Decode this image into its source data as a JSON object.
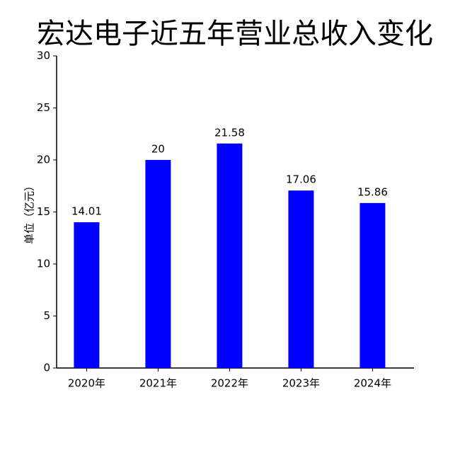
{
  "chart_data": {
    "type": "bar",
    "title": "宏达电子近五年营业总收入变化",
    "y_label": "单位（亿元）",
    "categories": [
      "2020年",
      "2021年",
      "2022年",
      "2023年",
      "2024年"
    ],
    "values": [
      14.01,
      20,
      21.58,
      17.06,
      15.86
    ],
    "color": "#0000ff",
    "ylim": [
      0,
      30
    ],
    "yticks": [
      0,
      5,
      10,
      15,
      20,
      25,
      30
    ],
    "grid": false
  }
}
